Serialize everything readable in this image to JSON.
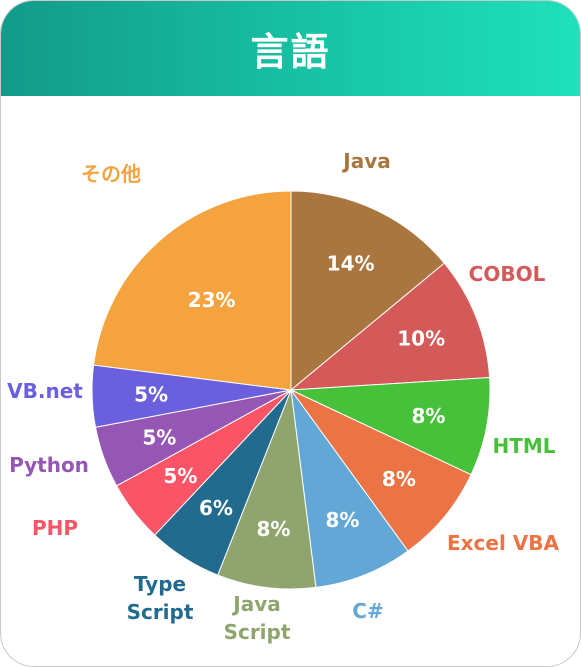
{
  "title": "言語",
  "chart_data": {
    "type": "pie",
    "categories": [
      "Java",
      "COBOL",
      "HTML",
      "Excel VBA",
      "C#",
      "Java Script",
      "Type Script",
      "PHP",
      "Python",
      "VB.net",
      "その他"
    ],
    "values": [
      14,
      10,
      8,
      8,
      8,
      8,
      6,
      5,
      5,
      5,
      23
    ],
    "value_labels": [
      "14%",
      "10%",
      "8%",
      "8%",
      "8%",
      "8%",
      "6%",
      "5%",
      "5%",
      "5%",
      "23%"
    ],
    "label_lines": [
      [
        "Java"
      ],
      [
        "COBOL"
      ],
      [
        "HTML"
      ],
      [
        "Excel VBA"
      ],
      [
        "C#"
      ],
      [
        "Java",
        "Script"
      ],
      [
        "Type",
        "Script"
      ],
      [
        "PHP"
      ],
      [
        "Python"
      ],
      [
        "VB.net"
      ],
      [
        "その他"
      ]
    ],
    "colors": [
      "#a8763e",
      "#d35a58",
      "#47c03a",
      "#eb7344",
      "#63a7d7",
      "#8fa56d",
      "#226b8f",
      "#fa5566",
      "#9656b4",
      "#6a5fdc",
      "#f4a33e"
    ]
  }
}
